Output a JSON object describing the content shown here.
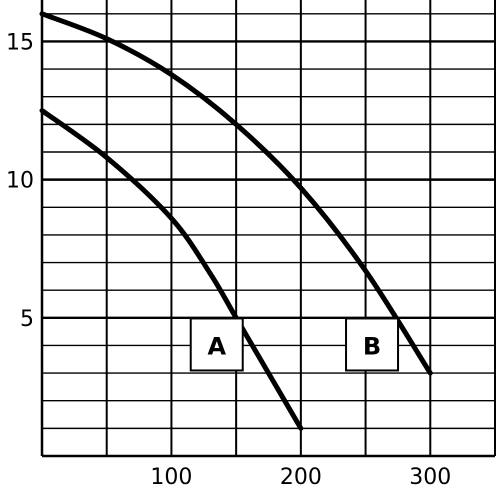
{
  "chart_data": {
    "type": "line",
    "title": "",
    "xlabel": "",
    "ylabel": "",
    "xlim": [
      0,
      350
    ],
    "ylim": [
      0,
      16.5
    ],
    "x_ticks": [
      100,
      200,
      300
    ],
    "y_ticks": [
      5,
      10,
      15
    ],
    "x_gridline_step": 50,
    "y_gridline_step": 1,
    "grid": true,
    "series": [
      {
        "name": "A",
        "points": [
          [
            0,
            12.5
          ],
          [
            50,
            10.8
          ],
          [
            100,
            8.6
          ],
          [
            130,
            6.6
          ],
          [
            150,
            5.0
          ],
          [
            175,
            3.0
          ],
          [
            200,
            1.0
          ]
        ]
      },
      {
        "name": "B",
        "points": [
          [
            0,
            16.0
          ],
          [
            50,
            15.1
          ],
          [
            100,
            13.8
          ],
          [
            150,
            12.0
          ],
          [
            200,
            9.7
          ],
          [
            250,
            6.7
          ],
          [
            300,
            3.0
          ]
        ]
      }
    ],
    "labels": [
      {
        "text": "A",
        "x": 135,
        "y": 4.0
      },
      {
        "text": "B",
        "x": 255,
        "y": 4.0
      }
    ]
  }
}
